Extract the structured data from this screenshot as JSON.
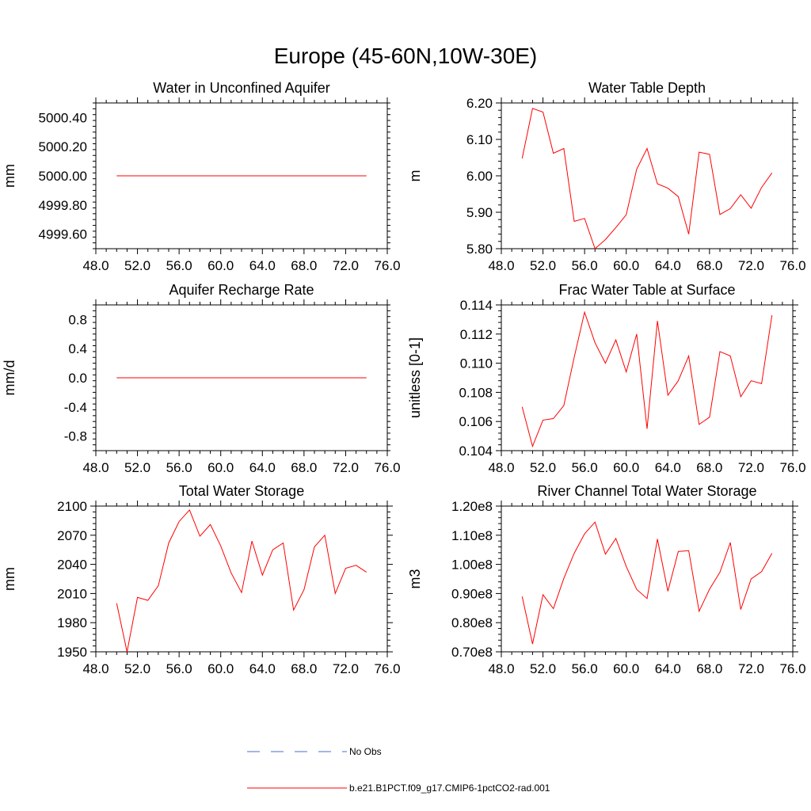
{
  "figure": {
    "title": "Europe (45-60N,10W-30E)"
  },
  "legend": {
    "entries": [
      {
        "label": "No Obs",
        "color": "#4a6fd0",
        "style": "dashed"
      },
      {
        "label": "b.e21.B1PCT.f09_g17.CMIP6-1pctCO2-rad.001",
        "color": "#ff0000",
        "style": "solid"
      }
    ]
  },
  "chart_data": [
    {
      "type": "line",
      "title": "Water in Unconfined Aquifer",
      "ylabel": "mm",
      "xlim": [
        48,
        76
      ],
      "ylim": [
        4999.5,
        5000.5
      ],
      "xticks": [
        48,
        52,
        56,
        60,
        64,
        68,
        72,
        76
      ],
      "xtick_labels": [
        "48.0",
        "52.0",
        "56.0",
        "60.0",
        "64.0",
        "68.0",
        "72.0",
        "76.0"
      ],
      "yticks": [
        4999.6,
        4999.8,
        5000.0,
        5000.2,
        5000.4
      ],
      "ytick_labels": [
        "4999.60",
        "4999.80",
        "5000.00",
        "5000.20",
        "5000.40"
      ],
      "x": [
        50,
        74
      ],
      "series": [
        {
          "name": "b.e21.B1PCT.f09_g17.CMIP6-1pctCO2-rad.001",
          "color": "#ff0000",
          "values": [
            5000.0,
            5000.0
          ]
        }
      ]
    },
    {
      "type": "line",
      "title": "Water Table Depth",
      "ylabel": "m",
      "xlim": [
        48,
        76
      ],
      "ylim": [
        5.8,
        6.2
      ],
      "xticks": [
        48,
        52,
        56,
        60,
        64,
        68,
        72,
        76
      ],
      "xtick_labels": [
        "48.0",
        "52.0",
        "56.0",
        "60.0",
        "64.0",
        "68.0",
        "72.0",
        "76.0"
      ],
      "yticks": [
        5.8,
        5.9,
        6.0,
        6.1,
        6.2
      ],
      "ytick_labels": [
        "5.80",
        "5.90",
        "6.00",
        "6.10",
        "6.20"
      ],
      "x": [
        50,
        51,
        52,
        53,
        54,
        55,
        56,
        57,
        58,
        59,
        60,
        61,
        62,
        63,
        64,
        65,
        66,
        67,
        68,
        69,
        70,
        71,
        72,
        73,
        74
      ],
      "series": [
        {
          "name": "b.e21.B1PCT.f09_g17.CMIP6-1pctCO2-rad.001",
          "color": "#ff0000",
          "values": [
            6.048,
            6.185,
            6.175,
            6.062,
            6.075,
            5.875,
            5.883,
            5.8,
            5.825,
            5.858,
            5.893,
            6.018,
            6.075,
            5.978,
            5.966,
            5.943,
            5.84,
            6.065,
            6.059,
            5.894,
            5.91,
            5.948,
            5.911,
            5.968,
            6.008
          ]
        }
      ]
    },
    {
      "type": "line",
      "title": "Aquifer Recharge Rate",
      "ylabel": "mm/d",
      "xlim": [
        48,
        76
      ],
      "ylim": [
        -1.0,
        1.0
      ],
      "xticks": [
        48,
        52,
        56,
        60,
        64,
        68,
        72,
        76
      ],
      "xtick_labels": [
        "48.0",
        "52.0",
        "56.0",
        "60.0",
        "64.0",
        "68.0",
        "72.0",
        "76.0"
      ],
      "yticks": [
        -0.8,
        -0.4,
        0.0,
        0.4,
        0.8
      ],
      "ytick_labels": [
        "-0.8",
        "-0.4",
        "0.0",
        "0.4",
        "0.8"
      ],
      "x": [
        50,
        74
      ],
      "series": [
        {
          "name": "b.e21.B1PCT.f09_g17.CMIP6-1pctCO2-rad.001",
          "color": "#ff0000",
          "values": [
            0.0,
            0.0
          ]
        }
      ]
    },
    {
      "type": "line",
      "title": "Frac Water Table at Surface",
      "ylabel": "unitless [0-1]",
      "xlim": [
        48,
        76
      ],
      "ylim": [
        0.104,
        0.114
      ],
      "xticks": [
        48,
        52,
        56,
        60,
        64,
        68,
        72,
        76
      ],
      "xtick_labels": [
        "48.0",
        "52.0",
        "56.0",
        "60.0",
        "64.0",
        "68.0",
        "72.0",
        "76.0"
      ],
      "yticks": [
        0.104,
        0.106,
        0.108,
        0.11,
        0.112,
        0.114
      ],
      "ytick_labels": [
        "0.104",
        "0.106",
        "0.108",
        "0.110",
        "0.112",
        "0.114"
      ],
      "x": [
        50,
        51,
        52,
        53,
        54,
        55,
        56,
        57,
        58,
        59,
        60,
        61,
        62,
        63,
        64,
        65,
        66,
        67,
        68,
        69,
        70,
        71,
        72,
        73,
        74
      ],
      "series": [
        {
          "name": "b.e21.B1PCT.f09_g17.CMIP6-1pctCO2-rad.001",
          "color": "#ff0000",
          "values": [
            0.107,
            0.1043,
            0.1061,
            0.1062,
            0.1071,
            0.1104,
            0.1135,
            0.1114,
            0.11,
            0.1116,
            0.1094,
            0.112,
            0.1055,
            0.1129,
            0.1078,
            0.1088,
            0.1105,
            0.1058,
            0.1063,
            0.1108,
            0.1105,
            0.1077,
            0.1088,
            0.1086,
            0.1133
          ]
        }
      ]
    },
    {
      "type": "line",
      "title": "Total Water Storage",
      "ylabel": "mm",
      "xlim": [
        48,
        76
      ],
      "ylim": [
        1950,
        2100
      ],
      "xticks": [
        48,
        52,
        56,
        60,
        64,
        68,
        72,
        76
      ],
      "xtick_labels": [
        "48.0",
        "52.0",
        "56.0",
        "60.0",
        "64.0",
        "68.0",
        "72.0",
        "76.0"
      ],
      "yticks": [
        1950,
        1980,
        2010,
        2040,
        2070,
        2100
      ],
      "ytick_labels": [
        "1950",
        "1980",
        "2010",
        "2040",
        "2070",
        "2100"
      ],
      "x": [
        50,
        51,
        52,
        53,
        54,
        55,
        56,
        57,
        58,
        59,
        60,
        61,
        62,
        63,
        64,
        65,
        66,
        67,
        68,
        69,
        70,
        71,
        72,
        73,
        74
      ],
      "series": [
        {
          "name": "b.e21.B1PCT.f09_g17.CMIP6-1pctCO2-rad.001",
          "color": "#ff0000",
          "values": [
            2000,
            1950,
            2006,
            2003,
            2018,
            2062,
            2084,
            2096,
            2069,
            2081,
            2059,
            2031,
            2011,
            2064,
            2029,
            2055,
            2062,
            1993,
            2014,
            2058,
            2070,
            2010,
            2036,
            2039,
            2032
          ]
        }
      ]
    },
    {
      "type": "line",
      "title": "River Channel Total Water Storage",
      "ylabel": "m3",
      "xlim": [
        48,
        76
      ],
      "ylim": [
        70000000,
        120000000
      ],
      "xticks": [
        48,
        52,
        56,
        60,
        64,
        68,
        72,
        76
      ],
      "xtick_labels": [
        "48.0",
        "52.0",
        "56.0",
        "60.0",
        "64.0",
        "68.0",
        "72.0",
        "76.0"
      ],
      "yticks": [
        70000000,
        80000000,
        90000000,
        100000000,
        110000000,
        120000000
      ],
      "ytick_labels": [
        "0.70e8",
        "0.80e8",
        "0.90e8",
        "1.00e8",
        "1.10e8",
        "1.20e8"
      ],
      "x": [
        50,
        51,
        52,
        53,
        54,
        55,
        56,
        57,
        58,
        59,
        60,
        61,
        62,
        63,
        64,
        65,
        66,
        67,
        68,
        69,
        70,
        71,
        72,
        73,
        74
      ],
      "series": [
        {
          "name": "b.e21.B1PCT.f09_g17.CMIP6-1pctCO2-rad.001",
          "color": "#ff0000",
          "values": [
            89000000,
            72700000,
            89600000,
            84800000,
            95200000,
            103800000,
            110500000,
            114500000,
            103500000,
            108900000,
            99300000,
            91400000,
            88300000,
            108700000,
            90800000,
            104400000,
            104700000,
            83900000,
            91500000,
            97300000,
            107500000,
            84500000,
            95000000,
            97500000,
            103800000
          ]
        }
      ]
    }
  ]
}
